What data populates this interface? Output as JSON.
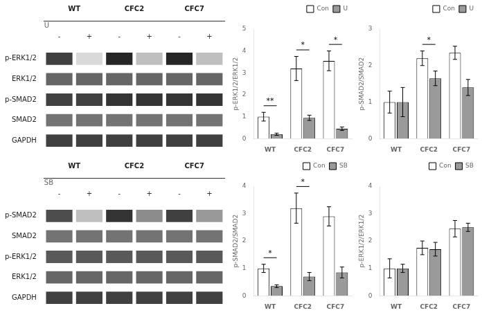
{
  "chart_data": [
    {
      "type": "heatmap",
      "xlabel": "U",
      "groups": [
        "WT",
        "CFC2",
        "CFC7"
      ],
      "categories": [
        "-",
        "+",
        "-",
        "+",
        "-",
        "+"
      ],
      "rows": [
        "p-ERK1/2",
        "ERK1/2",
        "p-SMAD2",
        "SMAD2",
        "GAPDH"
      ],
      "cells": [
        [
          0.25,
          0.85,
          0.15,
          0.75,
          0.15,
          0.75
        ],
        [
          0.4,
          0.4,
          0.4,
          0.4,
          0.4,
          0.4
        ],
        [
          0.25,
          0.25,
          0.2,
          0.2,
          0.2,
          0.2
        ],
        [
          0.45,
          0.45,
          0.45,
          0.45,
          0.45,
          0.45
        ],
        [
          0.25,
          0.25,
          0.25,
          0.25,
          0.25,
          0.25
        ]
      ]
    },
    {
      "type": "heatmap",
      "xlabel": "SB",
      "groups": [
        "WT",
        "CFC2",
        "CFC7"
      ],
      "categories": [
        "-",
        "+",
        "-",
        "+",
        "-",
        "+"
      ],
      "rows": [
        "p-SMAD2",
        "SMAD2",
        "p-ERK1/2",
        "ERK1/2",
        "GAPDH"
      ],
      "cells": [
        [
          0.3,
          0.75,
          0.2,
          0.55,
          0.25,
          0.6
        ],
        [
          0.45,
          0.45,
          0.45,
          0.45,
          0.45,
          0.45
        ],
        [
          0.35,
          0.35,
          0.35,
          0.35,
          0.35,
          0.35
        ],
        [
          0.4,
          0.4,
          0.4,
          0.4,
          0.4,
          0.4
        ],
        [
          0.25,
          0.25,
          0.25,
          0.25,
          0.25,
          0.25
        ]
      ]
    },
    {
      "type": "bar",
      "ylabel": "p-ERK1/2/ERK1/2",
      "categories": [
        "WT",
        "CFC2",
        "CFC7"
      ],
      "series": [
        {
          "name": "Con",
          "color": "#ffffff",
          "values": [
            1.0,
            3.2,
            3.55
          ],
          "errors": [
            0.2,
            0.55,
            0.45
          ]
        },
        {
          "name": "U",
          "color": "#9a9a9a",
          "values": [
            0.2,
            0.95,
            0.45
          ],
          "errors": [
            0.05,
            0.12,
            0.08
          ]
        }
      ],
      "ylim": [
        0,
        5
      ],
      "yticks": [
        0,
        1,
        2,
        3,
        4,
        5
      ],
      "grid": false,
      "legend": "upper right",
      "annotations": [
        {
          "x": "WT",
          "text": "**"
        },
        {
          "x": "CFC2",
          "text": "*"
        },
        {
          "x": "CFC7",
          "text": "*"
        }
      ]
    },
    {
      "type": "bar",
      "ylabel": "p-SMAD2/SMAD2",
      "categories": [
        "WT",
        "CFC2",
        "CFC7"
      ],
      "series": [
        {
          "name": "Con",
          "color": "#ffffff",
          "values": [
            1.0,
            2.2,
            2.35
          ],
          "errors": [
            0.3,
            0.2,
            0.18
          ]
        },
        {
          "name": "U",
          "color": "#9a9a9a",
          "values": [
            1.0,
            1.65,
            1.4
          ],
          "errors": [
            0.4,
            0.2,
            0.22
          ]
        }
      ],
      "ylim": [
        0,
        3
      ],
      "yticks": [
        0,
        1,
        2,
        3
      ],
      "grid": false,
      "legend": "upper right",
      "annotations": [
        {
          "x": "CFC2",
          "text": "*"
        }
      ]
    },
    {
      "type": "bar",
      "ylabel": "p-SMAD2/SMAD2",
      "categories": [
        "WT",
        "CFC2",
        "CFC7"
      ],
      "series": [
        {
          "name": "Con",
          "color": "#ffffff",
          "values": [
            1.0,
            3.2,
            2.9
          ],
          "errors": [
            0.15,
            0.55,
            0.35
          ]
        },
        {
          "name": "SB",
          "color": "#9a9a9a",
          "values": [
            0.35,
            0.7,
            0.85
          ],
          "errors": [
            0.05,
            0.15,
            0.2
          ]
        }
      ],
      "ylim": [
        0,
        4
      ],
      "yticks": [
        0,
        1,
        2,
        3,
        4
      ],
      "grid": false,
      "legend": "upper right",
      "annotations": [
        {
          "x": "WT",
          "text": "*"
        },
        {
          "x": "CFC2",
          "text": "*"
        }
      ]
    },
    {
      "type": "bar",
      "ylabel": "p-ERK1/2/ERK1/2",
      "categories": [
        "WT",
        "CFC2",
        "CFC7"
      ],
      "series": [
        {
          "name": "Con",
          "color": "#ffffff",
          "values": [
            1.0,
            1.75,
            2.45
          ],
          "errors": [
            0.35,
            0.25,
            0.3
          ]
        },
        {
          "name": "SB",
          "color": "#9a9a9a",
          "values": [
            1.0,
            1.7,
            2.5
          ],
          "errors": [
            0.15,
            0.25,
            0.15
          ]
        }
      ],
      "ylim": [
        0,
        4
      ],
      "yticks": [
        0,
        1,
        2,
        3,
        4
      ],
      "grid": false,
      "legend": "upper right"
    }
  ]
}
